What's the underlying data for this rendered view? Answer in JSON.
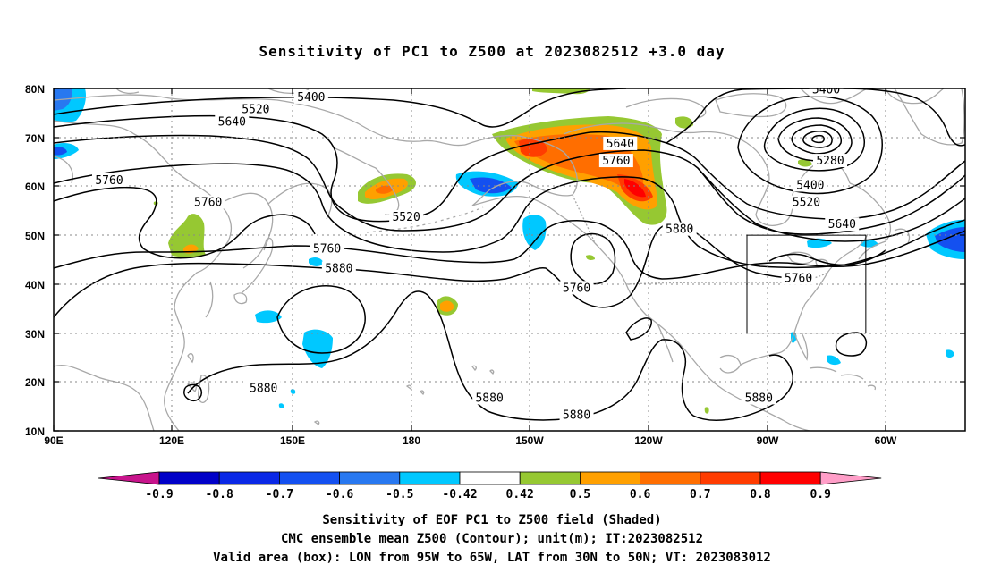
{
  "title": "Sensitivity of PC1 to Z500 at 2023082512 +3.0 day",
  "map": {
    "lat_ticks": [
      "80N",
      "70N",
      "60N",
      "50N",
      "40N",
      "30N",
      "20N",
      "10N"
    ],
    "lon_ticks": [
      "90E",
      "120E",
      "150E",
      "180",
      "150W",
      "120W",
      "90W",
      "60W"
    ],
    "contour_labels": [
      {
        "text": "5400",
        "lon": 155,
        "lat": 78
      },
      {
        "text": "5520",
        "lon": 141,
        "lat": 75.5
      },
      {
        "text": "5640",
        "lon": 135,
        "lat": 73
      },
      {
        "text": "5760",
        "lon": 104,
        "lat": 61
      },
      {
        "text": "5760",
        "lon": 129,
        "lat": 56.5
      },
      {
        "text": "5520",
        "lon": 179,
        "lat": 53.5
      },
      {
        "text": "5760",
        "lon": 159,
        "lat": 47
      },
      {
        "text": "5880",
        "lon": 162,
        "lat": 43
      },
      {
        "text": "5640",
        "lon": -127,
        "lat": 68.5
      },
      {
        "text": "5760",
        "lon": -128,
        "lat": 65
      },
      {
        "text": "5760",
        "lon": -138,
        "lat": 39
      },
      {
        "text": "5880",
        "lon": -112,
        "lat": 51
      },
      {
        "text": "5400",
        "lon": -75,
        "lat": 79.5
      },
      {
        "text": "5280",
        "lon": -74,
        "lat": 65
      },
      {
        "text": "5400",
        "lon": -79,
        "lat": 60
      },
      {
        "text": "5520",
        "lon": -80,
        "lat": 56.5
      },
      {
        "text": "5640",
        "lon": -71,
        "lat": 52
      },
      {
        "text": "5760",
        "lon": -82,
        "lat": 41
      },
      {
        "text": "5880",
        "lon": 143,
        "lat": 18.5
      },
      {
        "text": "5880",
        "lon": -160,
        "lat": 16.5
      },
      {
        "text": "5880",
        "lon": -138,
        "lat": 13
      },
      {
        "text": "5880",
        "lon": -92,
        "lat": 16.5
      }
    ],
    "valid_box": {
      "lon_west": -95,
      "lon_east": -65,
      "lat_south": 30,
      "lat_north": 50
    }
  },
  "colorbar": {
    "labels": [
      "-0.9",
      "-0.8",
      "-0.7",
      "-0.6",
      "-0.5",
      "-0.42",
      "0.42",
      "0.5",
      "0.6",
      "0.7",
      "0.8",
      "0.9"
    ],
    "colors": {
      "below": "#c8148c",
      "bins": [
        "#0000c8",
        "#0a28e6",
        "#1450f0",
        "#2878f0",
        "#00c8ff",
        "#ffffff",
        "#96c832",
        "#ffa000",
        "#ff6e00",
        "#ff3c00",
        "#ff0000"
      ],
      "above": "#ff9ec8"
    }
  },
  "caption": {
    "line1": "Sensitivity of EOF PC1 to Z500 field (Shaded)",
    "line2": "CMC ensemble mean Z500 (Contour); unit(m); IT:2023082512",
    "line3": "Valid area (box): LON from 95W to 65W, LAT from 30N to 50N; VT: 2023083012"
  }
}
